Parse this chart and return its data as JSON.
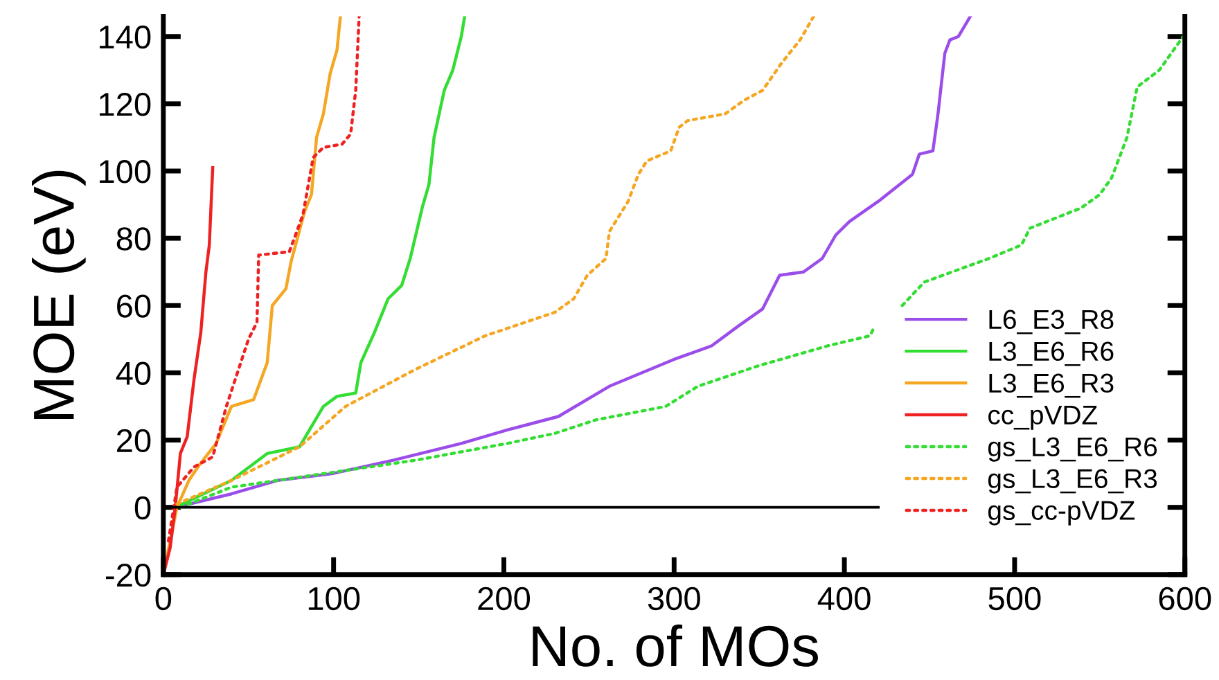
{
  "chart_data": {
    "type": "line",
    "xlabel": "No. of MOs",
    "ylabel": "MOE (eV)",
    "xlim": [
      0,
      600
    ],
    "xticks": [
      0,
      100,
      200,
      300,
      400,
      500,
      600
    ],
    "ylim": [
      -20,
      146
    ],
    "yticks": [
      -20,
      0,
      20,
      40,
      60,
      80,
      100,
      120,
      140
    ],
    "grid": false,
    "legend": "lower right",
    "marker": "none",
    "series": [
      {
        "name": "L6_E3_R8",
        "color": "#9b4dea",
        "line_style": "solid",
        "x": [
          7,
          40,
          67,
          99,
          135,
          175,
          202,
          232,
          262,
          300,
          322,
          338,
          352,
          362,
          376,
          387,
          395,
          403,
          420,
          430,
          440,
          444,
          452,
          455,
          459,
          462,
          467,
          474
        ],
        "values": [
          0,
          4,
          8,
          10,
          14,
          19,
          23,
          27,
          36,
          44,
          48,
          54,
          59,
          69,
          70,
          74,
          81,
          85,
          91,
          95,
          99,
          105,
          106,
          117,
          135,
          139,
          140,
          146
        ]
      },
      {
        "name": "L3_E6_R6",
        "color": "#33dd33",
        "line_style": "solid",
        "x": [
          7,
          40,
          61,
          80,
          94,
          102,
          113,
          116,
          124,
          132,
          140,
          145,
          152,
          156,
          159,
          165,
          170,
          175,
          177
        ],
        "values": [
          0,
          8,
          16,
          18,
          30,
          33,
          34,
          43,
          52,
          62,
          66,
          74,
          89,
          96,
          110,
          124,
          130,
          140,
          146
        ]
      },
      {
        "name": "L3_E6_R3",
        "color": "#f5a623",
        "line_style": "solid",
        "x": [
          0,
          4,
          8,
          15,
          21,
          31,
          40,
          53,
          61,
          64,
          72,
          75,
          83,
          87,
          90,
          94,
          98,
          102,
          104
        ],
        "values": [
          -20,
          -10,
          0,
          8,
          12.5,
          19,
          30,
          32,
          43,
          60,
          65,
          73,
          88,
          93,
          110,
          117,
          129,
          136,
          146
        ]
      },
      {
        "name": "cc_pVDZ",
        "color": "#ee2222",
        "line_style": "solid",
        "x": [
          0,
          4,
          7,
          10,
          14,
          18,
          22,
          25,
          27,
          29
        ],
        "values": [
          -20,
          -12,
          0,
          16,
          21,
          38,
          52,
          70,
          78,
          101
        ]
      },
      {
        "name": "gs_L3_E6_R6",
        "color": "#33dd33",
        "line_style": "dotted",
        "x": [
          10,
          40,
          94,
          148,
          202,
          230,
          254,
          295,
          314,
          349,
          390,
          415,
          418,
          426,
          434,
          447,
          485,
          504,
          509,
          539,
          550,
          557,
          566,
          572,
          585,
          599
        ],
        "values": [
          0,
          6,
          10,
          14,
          19,
          22,
          26,
          30,
          36,
          42,
          48,
          51,
          54,
          null,
          60,
          67,
          74,
          78,
          83,
          89,
          93,
          98,
          110,
          125,
          130,
          140
        ]
      },
      {
        "name": "gs_L3_E6_R3",
        "color": "#f5a623",
        "line_style": "dotted",
        "x": [
          8,
          40,
          80,
          107,
          148,
          189,
          230,
          241,
          249,
          260,
          262,
          273,
          279,
          284,
          298,
          303,
          308,
          330,
          341,
          352,
          363,
          374,
          382
        ],
        "values": [
          1,
          8,
          18,
          30,
          41,
          51,
          58,
          62,
          69,
          74,
          82,
          91,
          99,
          103,
          106,
          113,
          115,
          117,
          121,
          124,
          132,
          139,
          146
        ]
      },
      {
        "name": "gs_cc-pVDZ",
        "color": "#ee2222",
        "line_style": "dotted",
        "x": [
          3,
          8,
          18,
          29,
          37,
          50,
          55,
          56,
          74,
          82,
          88,
          94,
          105,
          110,
          113,
          115
        ],
        "values": [
          -10,
          6,
          12,
          15,
          30,
          50,
          55,
          75,
          76,
          87,
          104,
          107,
          108,
          111,
          124,
          146
        ]
      },
      {
        "color": "#000000",
        "line_style": "solid",
        "x": [
          0,
          420
        ],
        "values": [
          0,
          0
        ]
      }
    ]
  }
}
